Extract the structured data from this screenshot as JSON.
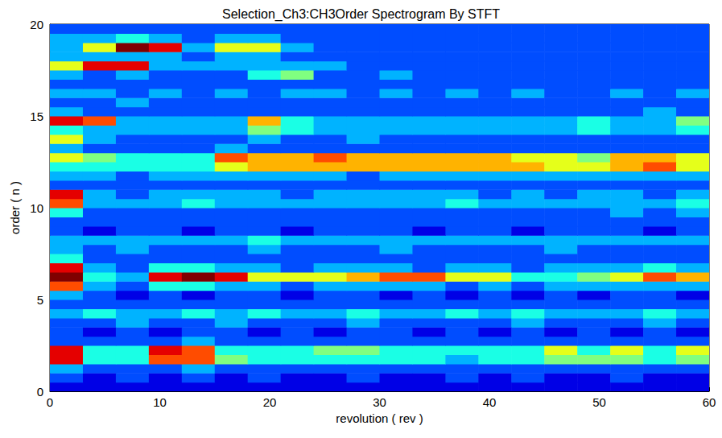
{
  "chart_data": {
    "type": "heatmap",
    "title": "Selection_Ch3:CH3Order Spectrogram By STFT",
    "x_label": "revolution ( rev )",
    "y_label": "order ( n )",
    "xlim": [
      0,
      60
    ],
    "xticks": [
      0,
      10,
      20,
      30,
      40,
      50,
      60
    ],
    "ylim": [
      0,
      20
    ],
    "yticks": [
      0,
      5,
      10,
      15,
      20
    ],
    "grid": false,
    "color_range": [
      0,
      10
    ],
    "cells": {
      "x_bins": [
        0,
        3,
        6,
        9,
        12,
        15,
        18,
        21,
        24,
        27,
        30,
        33,
        36,
        39,
        42,
        45,
        48,
        51,
        54,
        57,
        60
      ],
      "y_bins": [
        0,
        0.5,
        1,
        1.5,
        2,
        2.5,
        3,
        3.5,
        4,
        4.5,
        5,
        5.5,
        6,
        6.5,
        7,
        7.5,
        8,
        8.5,
        9,
        9.5,
        10,
        10.5,
        11,
        11.5,
        12,
        12.5,
        13,
        13.5,
        14,
        14.5,
        15,
        15.5,
        16,
        16.5,
        17,
        17.5,
        18,
        18.5,
        19,
        19.5,
        20
      ],
      "values": [
        [
          1,
          1,
          1,
          1,
          1,
          1,
          1,
          1,
          1,
          1,
          1,
          1,
          1,
          1,
          1,
          1,
          1,
          1,
          1,
          1
        ],
        [
          2,
          1,
          2,
          1,
          2,
          1,
          2,
          1,
          1,
          2,
          1,
          1,
          2,
          1,
          2,
          1,
          1,
          2,
          1,
          1
        ],
        [
          3,
          2,
          2,
          2,
          3,
          2,
          2,
          2,
          2,
          2,
          2,
          2,
          2,
          2,
          2,
          2,
          2,
          2,
          2,
          2
        ],
        [
          9,
          4,
          4,
          8,
          8,
          5,
          4,
          4,
          4,
          4,
          4,
          4,
          3,
          4,
          4,
          5,
          5,
          5,
          4,
          5
        ],
        [
          9,
          4,
          4,
          9,
          8,
          4,
          4,
          4,
          5,
          5,
          4,
          4,
          4,
          4,
          4,
          6,
          4,
          6,
          4,
          6
        ],
        [
          2,
          2,
          2,
          2,
          3,
          2,
          2,
          2,
          2,
          2,
          2,
          2,
          2,
          2,
          2,
          2,
          2,
          2,
          2,
          2
        ],
        [
          2,
          1,
          2,
          1,
          2,
          2,
          1,
          2,
          1,
          2,
          2,
          1,
          2,
          1,
          2,
          1,
          2,
          1,
          2,
          1
        ],
        [
          2,
          2,
          3,
          2,
          2,
          3,
          2,
          2,
          2,
          3,
          2,
          2,
          2,
          2,
          3,
          2,
          2,
          2,
          3,
          2
        ],
        [
          3,
          4,
          3,
          3,
          4,
          3,
          4,
          3,
          3,
          4,
          3,
          3,
          4,
          3,
          4,
          3,
          3,
          3,
          4,
          3
        ],
        [
          2,
          2,
          2,
          2,
          2,
          2,
          2,
          2,
          2,
          2,
          2,
          2,
          2,
          2,
          2,
          2,
          2,
          2,
          2,
          2
        ],
        [
          3,
          2,
          1,
          2,
          1,
          2,
          2,
          1,
          2,
          2,
          1,
          2,
          1,
          2,
          1,
          2,
          1,
          2,
          2,
          1
        ],
        [
          8,
          3,
          2,
          4,
          4,
          3,
          3,
          2,
          3,
          3,
          3,
          3,
          2,
          3,
          2,
          3,
          3,
          3,
          3,
          3
        ],
        [
          10,
          4,
          3,
          9,
          10,
          9,
          6,
          6,
          6,
          7,
          8,
          8,
          6,
          6,
          4,
          4,
          5,
          6,
          8,
          7
        ],
        [
          9,
          3,
          2,
          4,
          4,
          3,
          3,
          2,
          3,
          3,
          3,
          2,
          3,
          3,
          2,
          3,
          3,
          3,
          4,
          3
        ],
        [
          4,
          2,
          2,
          2,
          2,
          2,
          2,
          2,
          2,
          2,
          2,
          2,
          2,
          2,
          2,
          2,
          2,
          2,
          2,
          2
        ],
        [
          3,
          2,
          3,
          2,
          2,
          2,
          3,
          2,
          2,
          2,
          3,
          2,
          2,
          2,
          2,
          3,
          2,
          2,
          2,
          2
        ],
        [
          3,
          3,
          3,
          3,
          3,
          3,
          4,
          3,
          3,
          3,
          3,
          3,
          3,
          3,
          3,
          3,
          3,
          3,
          3,
          3
        ],
        [
          2,
          1,
          2,
          2,
          1,
          2,
          2,
          1,
          2,
          2,
          2,
          1,
          2,
          2,
          1,
          2,
          2,
          2,
          1,
          2
        ],
        [
          2,
          2,
          2,
          2,
          2,
          2,
          2,
          2,
          2,
          2,
          2,
          2,
          2,
          2,
          2,
          2,
          2,
          2,
          2,
          2
        ],
        [
          4,
          2,
          2,
          2,
          2,
          2,
          2,
          2,
          2,
          2,
          2,
          2,
          2,
          2,
          2,
          2,
          2,
          3,
          2,
          3
        ],
        [
          8,
          3,
          3,
          3,
          4,
          3,
          3,
          3,
          3,
          3,
          3,
          3,
          4,
          3,
          3,
          3,
          3,
          3,
          3,
          4
        ],
        [
          9,
          3,
          2,
          3,
          3,
          3,
          3,
          2,
          3,
          3,
          3,
          3,
          3,
          2,
          3,
          2,
          3,
          3,
          2,
          3
        ],
        [
          2,
          2,
          2,
          2,
          2,
          2,
          2,
          2,
          2,
          2,
          2,
          2,
          2,
          2,
          2,
          2,
          2,
          2,
          2,
          2
        ],
        [
          3,
          3,
          2,
          3,
          3,
          3,
          3,
          3,
          3,
          2,
          3,
          3,
          3,
          3,
          3,
          3,
          3,
          3,
          3,
          3
        ],
        [
          4,
          4,
          4,
          4,
          4,
          6,
          7,
          7,
          7,
          7,
          7,
          7,
          7,
          7,
          7,
          6,
          6,
          7,
          8,
          6
        ],
        [
          6,
          5,
          4,
          4,
          4,
          8,
          7,
          7,
          8,
          7,
          7,
          7,
          7,
          7,
          6,
          6,
          5,
          7,
          7,
          6
        ],
        [
          3,
          2,
          2,
          2,
          2,
          3,
          2,
          2,
          2,
          2,
          2,
          2,
          2,
          2,
          2,
          2,
          2,
          2,
          2,
          2
        ],
        [
          6,
          3,
          2,
          2,
          2,
          2,
          3,
          2,
          2,
          3,
          2,
          2,
          2,
          2,
          2,
          2,
          2,
          2,
          2,
          2
        ],
        [
          4,
          3,
          3,
          3,
          3,
          3,
          5,
          4,
          3,
          3,
          3,
          3,
          3,
          3,
          3,
          3,
          4,
          3,
          3,
          4
        ],
        [
          9,
          8,
          3,
          3,
          3,
          3,
          7,
          4,
          3,
          3,
          3,
          3,
          3,
          3,
          3,
          3,
          4,
          3,
          3,
          5
        ],
        [
          3,
          2,
          2,
          2,
          2,
          2,
          2,
          2,
          2,
          2,
          2,
          2,
          2,
          2,
          2,
          2,
          2,
          2,
          3,
          2
        ],
        [
          2,
          2,
          3,
          2,
          2,
          2,
          2,
          2,
          2,
          2,
          2,
          2,
          2,
          2,
          2,
          2,
          2,
          2,
          2,
          2
        ],
        [
          3,
          3,
          2,
          3,
          2,
          3,
          2,
          3,
          3,
          2,
          3,
          2,
          3,
          2,
          3,
          2,
          2,
          3,
          2,
          3
        ],
        [
          2,
          2,
          2,
          2,
          2,
          2,
          2,
          2,
          2,
          2,
          2,
          2,
          2,
          2,
          2,
          2,
          2,
          2,
          2,
          2
        ],
        [
          3,
          2,
          3,
          2,
          2,
          2,
          4,
          5,
          2,
          2,
          3,
          2,
          2,
          2,
          2,
          2,
          2,
          2,
          2,
          2
        ],
        [
          6,
          9,
          9,
          3,
          3,
          3,
          3,
          3,
          3,
          2,
          2,
          2,
          2,
          2,
          2,
          2,
          2,
          2,
          2,
          2
        ],
        [
          3,
          3,
          3,
          3,
          2,
          3,
          3,
          2,
          2,
          2,
          2,
          2,
          2,
          2,
          2,
          2,
          2,
          2,
          2,
          2
        ],
        [
          3,
          6,
          10,
          9,
          3,
          6,
          6,
          3,
          2,
          2,
          2,
          2,
          2,
          2,
          2,
          2,
          2,
          2,
          2,
          2
        ],
        [
          3,
          3,
          4,
          3,
          2,
          3,
          3,
          2,
          2,
          2,
          2,
          2,
          2,
          2,
          2,
          2,
          2,
          2,
          2,
          2
        ],
        [
          2,
          2,
          2,
          2,
          2,
          2,
          2,
          2,
          2,
          2,
          2,
          2,
          2,
          2,
          2,
          2,
          2,
          2,
          2,
          2
        ]
      ]
    }
  }
}
